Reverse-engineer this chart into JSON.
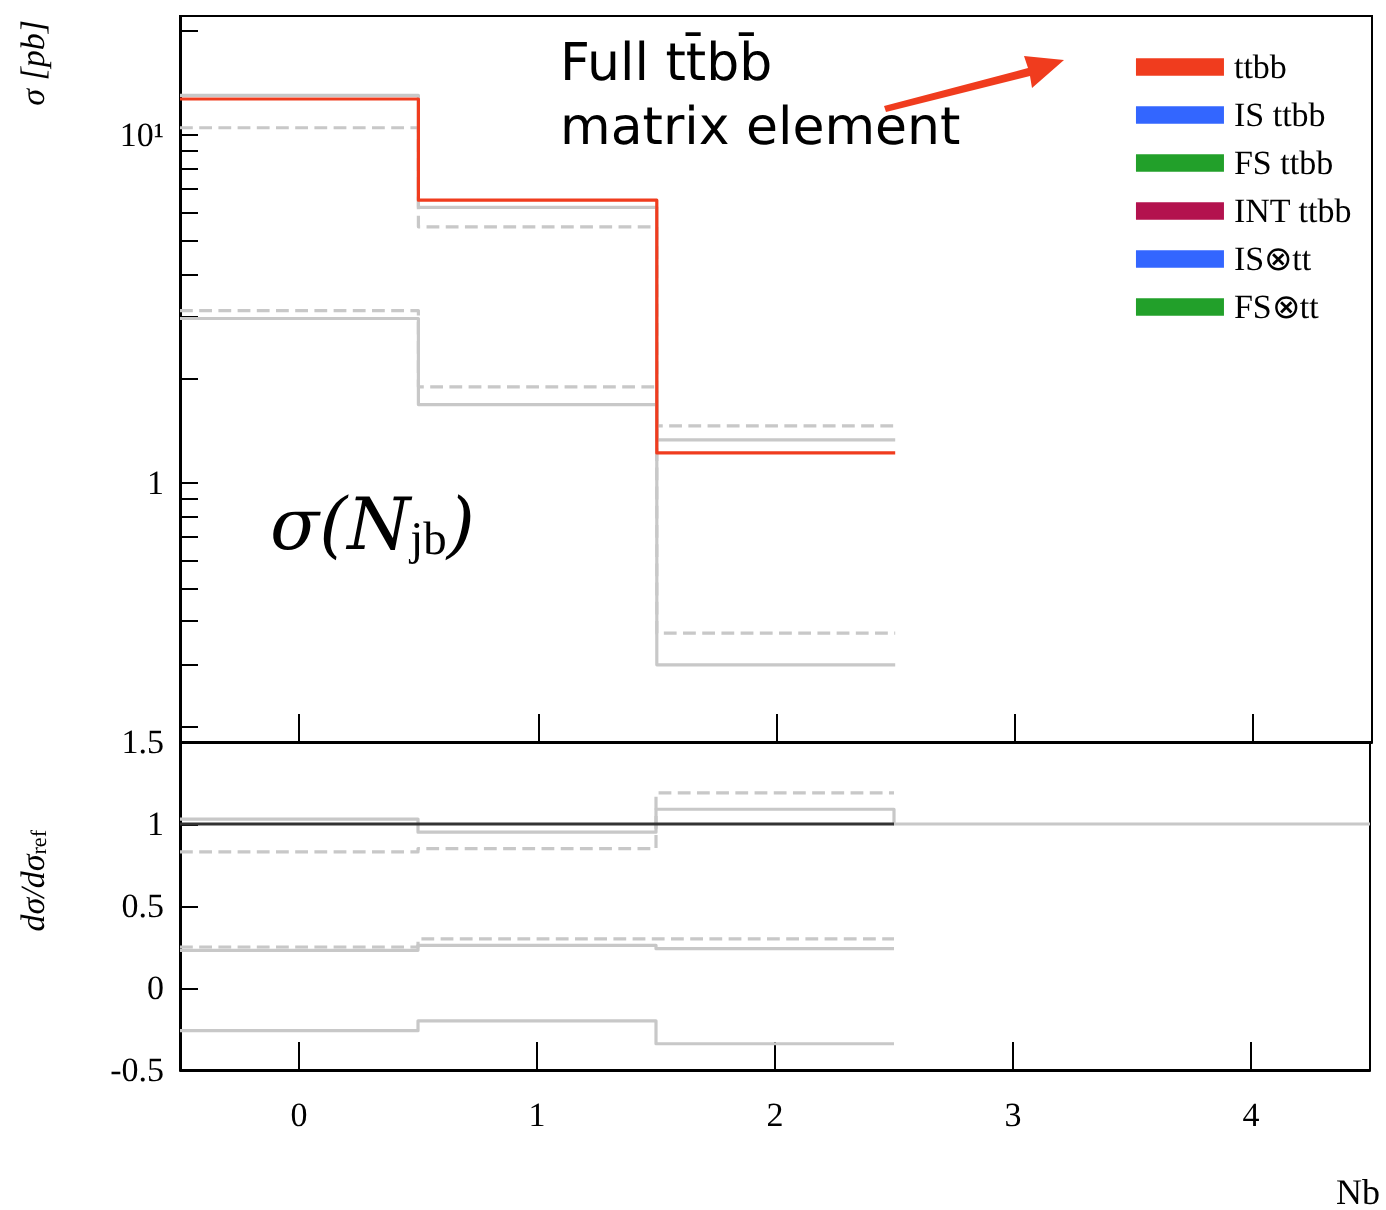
{
  "chart_data": [
    {
      "type": "line",
      "ylabel": "σ [pb]",
      "annotations": [
        "Full tt̄bb̄ matrix element",
        "σ(N$_{jb}$)"
      ],
      "x": [
        -0.5,
        0.5,
        0.5,
        1.5,
        1.5,
        2.5
      ],
      "xlim": [
        -0.5,
        4.5
      ],
      "xticks": [
        {
          "value": 0,
          "label": null
        },
        {
          "value": 1,
          "label": null
        },
        {
          "value": 2,
          "label": null
        },
        {
          "value": 3,
          "label": null
        },
        {
          "value": 4,
          "label": null
        }
      ],
      "log": "y",
      "ylim": [
        0.18,
        22
      ],
      "yticks": [
        {
          "value": 0.2,
          "label": null
        },
        {
          "value": 0.3,
          "label": null
        },
        {
          "value": 0.4,
          "label": null
        },
        {
          "value": 0.5,
          "label": null
        },
        {
          "value": 0.6,
          "label": null
        },
        {
          "value": 0.7,
          "label": null
        },
        {
          "value": 0.8,
          "label": null
        },
        {
          "value": 0.9,
          "label": null
        },
        1,
        {
          "value": 2,
          "label": null
        },
        {
          "value": 3,
          "label": null
        },
        {
          "value": 4,
          "label": null
        },
        {
          "value": 5,
          "label": null
        },
        {
          "value": 6,
          "label": null
        },
        {
          "value": 7,
          "label": null
        },
        {
          "value": 8,
          "label": null
        },
        {
          "value": 9,
          "label": null
        },
        {
          "value": 10,
          "label": "10¹"
        },
        {
          "value": 20,
          "label": null
        }
      ],
      "tick_labels": "y",
      "grid": false,
      "legend": "top right",
      "series": [
        {
          "color": "#c8c8c8",
          "values": [
            13.0,
            13.0,
            6.2,
            6.2,
            1.33,
            1.33
          ]
        },
        {
          "color": "#c8c8c8",
          "line_style": "dashed",
          "values": [
            10.5,
            10.5,
            5.45,
            5.45,
            1.46,
            1.46
          ]
        },
        {
          "color": "#c8c8c8",
          "line_style": "dashed",
          "values": [
            3.13,
            3.13,
            1.89,
            1.89,
            0.37,
            0.37
          ]
        },
        {
          "color": "#c8c8c8",
          "values": [
            2.97,
            2.97,
            1.68,
            1.68,
            0.3,
            0.3
          ]
        },
        {
          "name": "ttbb",
          "color": "#f03c1e",
          "values": [
            12.7,
            12.7,
            6.5,
            6.5,
            1.22,
            1.22
          ]
        },
        {
          "name": "IS ttbb",
          "color": "#3366ff",
          "values": [
            null,
            null,
            null,
            null,
            null,
            null
          ]
        },
        {
          "name": "FS ttbb",
          "color": "#22a02a",
          "values": [
            null,
            null,
            null,
            null,
            null,
            null
          ]
        },
        {
          "name": "INT ttbb",
          "color": "#b3124e",
          "values": [
            null,
            null,
            null,
            null,
            null,
            null
          ]
        },
        {
          "name": "IS⊗tt",
          "color": "#3366ff",
          "line_style": "dashed",
          "values": [
            null,
            null,
            null,
            null,
            null,
            null
          ]
        },
        {
          "name": "FS⊗tt",
          "color": "#22a02a",
          "line_style": "dashed",
          "values": [
            null,
            null,
            null,
            null,
            null,
            null
          ]
        }
      ]
    },
    {
      "type": "line",
      "xlabel": "Nb",
      "ylabel": "dσ/dσ$_{ref}$",
      "x": [
        -0.5,
        0.5,
        0.5,
        1.5,
        1.5,
        2.5
      ],
      "xlim": [
        -0.5,
        4.5
      ],
      "xticks": [
        0,
        1,
        2,
        3,
        4
      ],
      "ylim": [
        -0.5,
        1.5
      ],
      "yticks": [
        -0.5,
        0,
        0.5,
        1,
        1.5
      ],
      "grid": false,
      "series": [
        {
          "color": "#c8c8c8",
          "x": [
            -0.5,
            0.5,
            0.5,
            1.5,
            1.5,
            2.5,
            2.5,
            4.5
          ],
          "values": [
            1.03,
            1.03,
            0.95,
            0.95,
            1.09,
            1.09,
            1,
            1
          ]
        },
        {
          "color": "#c8c8c8",
          "line_style": "dashed",
          "values": [
            0.83,
            0.83,
            0.85,
            0.85,
            1.19,
            1.19
          ]
        },
        {
          "color": "#c8c8c8",
          "line_style": "dashed",
          "values": [
            0.25,
            0.25,
            0.3,
            0.3,
            0.3,
            0.3
          ]
        },
        {
          "color": "#c8c8c8",
          "values": [
            0.23,
            0.23,
            0.26,
            0.26,
            0.24,
            0.24
          ]
        },
        {
          "color": "#c8c8c8",
          "values": [
            -0.26,
            -0.26,
            -0.2,
            -0.2,
            -0.34,
            -0.34
          ]
        },
        {
          "color": "#333333",
          "values": [
            1,
            1,
            1,
            1,
            1,
            1
          ]
        }
      ]
    }
  ]
}
